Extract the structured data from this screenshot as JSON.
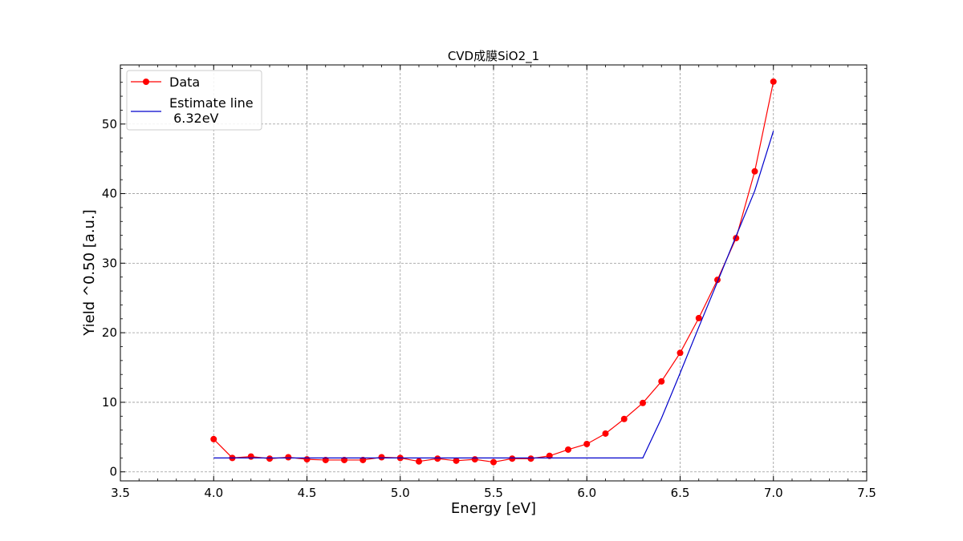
{
  "chart_data": {
    "type": "line",
    "title": "CVD成膜SiO2_1",
    "xlabel": "Energy [eV]",
    "ylabel": "Yield ^0.50 [a.u.]",
    "xlim": [
      3.5,
      7.5
    ],
    "ylim": [
      -1.3,
      58.5
    ],
    "xticks": [
      3.5,
      4.0,
      4.5,
      5.0,
      5.5,
      6.0,
      6.5,
      7.0,
      7.5
    ],
    "xtick_labels": [
      "3.5",
      "4.0",
      "4.5",
      "5.0",
      "5.5",
      "6.0",
      "6.5",
      "7.0",
      "7.5"
    ],
    "yticks": [
      0,
      10,
      20,
      30,
      40,
      50
    ],
    "ytick_labels": [
      "0",
      "10",
      "20",
      "30",
      "40",
      "50"
    ],
    "grid": true,
    "legend_position": "top-left",
    "series": [
      {
        "name": "Data",
        "color": "#ff0000",
        "marker": "circle",
        "x": [
          4.0,
          4.1,
          4.2,
          4.3,
          4.4,
          4.5,
          4.6,
          4.7,
          4.8,
          4.9,
          5.0,
          5.1,
          5.2,
          5.3,
          5.4,
          5.5,
          5.6,
          5.7,
          5.8,
          5.9,
          6.0,
          6.1,
          6.2,
          6.3,
          6.4,
          6.5,
          6.6,
          6.7,
          6.8,
          6.9,
          7.0
        ],
        "y": [
          4.7,
          2.0,
          2.2,
          1.9,
          2.1,
          1.8,
          1.7,
          1.7,
          1.7,
          2.1,
          2.0,
          1.5,
          1.9,
          1.6,
          1.8,
          1.4,
          1.9,
          1.9,
          2.3,
          3.2,
          4.0,
          5.5,
          7.6,
          9.9,
          13.0,
          17.1,
          22.1,
          27.6,
          33.6,
          43.2,
          56.1
        ]
      },
      {
        "name": "Estimate line\n 6.32eV",
        "name_lines": [
          "Estimate line",
          " 6.32eV"
        ],
        "color": "#0000cc",
        "marker": "none",
        "x": [
          4.0,
          6.3,
          6.4,
          6.5,
          6.6,
          6.7,
          6.8,
          6.9,
          7.0
        ],
        "y": [
          2.0,
          2.0,
          7.7,
          14.2,
          20.8,
          27.3,
          33.9,
          40.4,
          49.0
        ]
      }
    ]
  }
}
